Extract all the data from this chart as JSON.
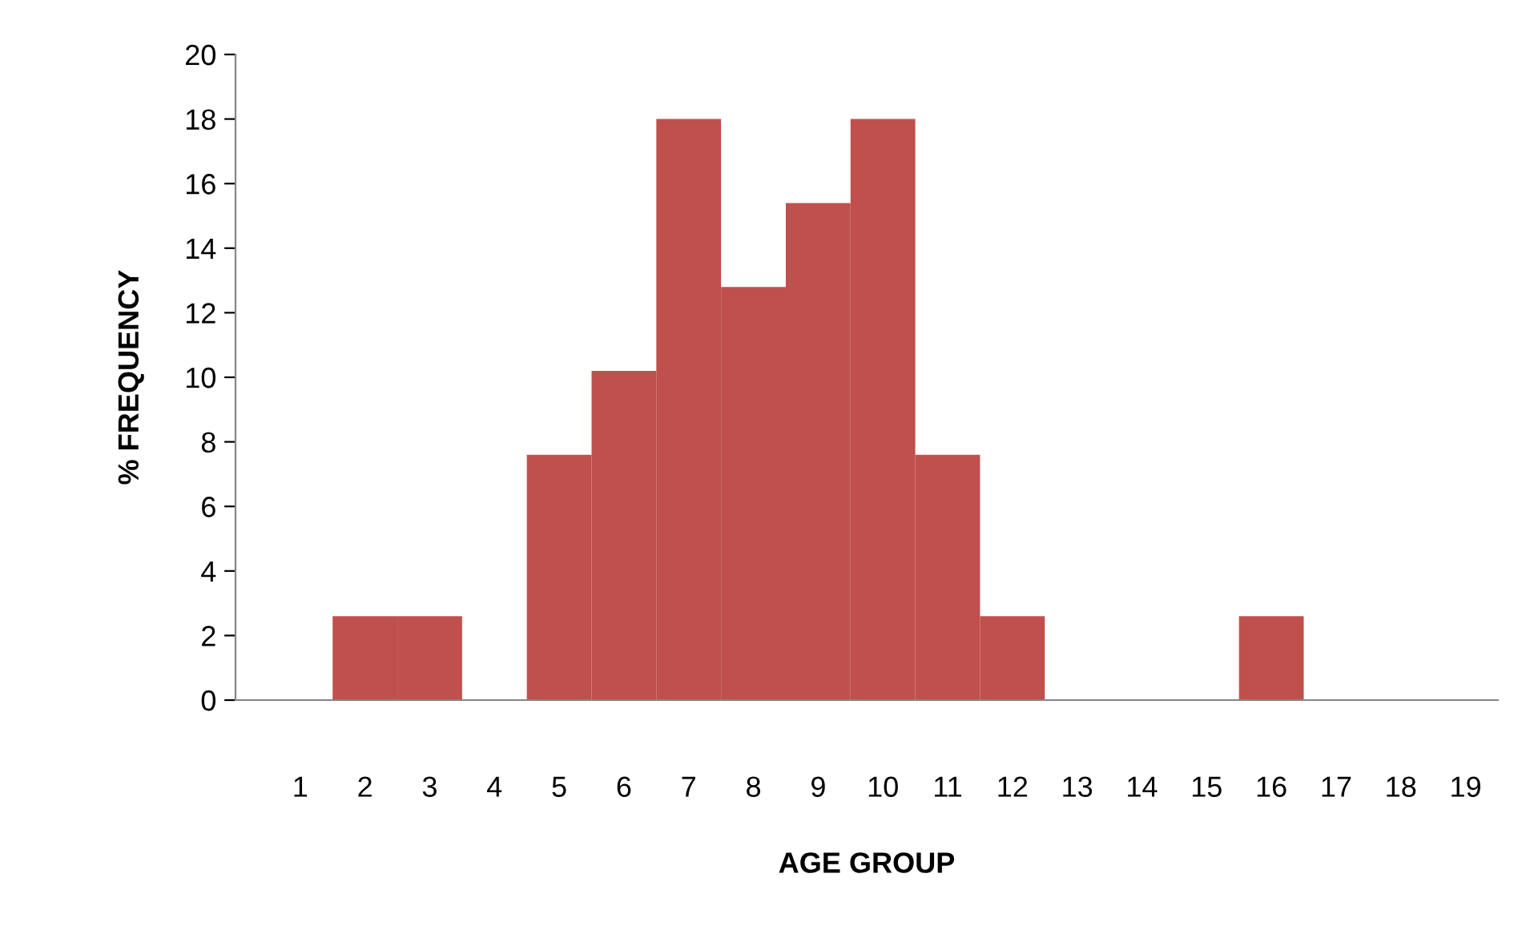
{
  "chart_data": {
    "type": "bar",
    "xlabel": "AGE GROUP",
    "ylabel": "% FREQUENCY",
    "categories": [
      "1",
      "2",
      "3",
      "4",
      "5",
      "6",
      "7",
      "8",
      "9",
      "10",
      "11",
      "12",
      "13",
      "14",
      "15",
      "16",
      "17",
      "18",
      "19"
    ],
    "values": [
      0,
      2.6,
      2.6,
      0,
      7.6,
      10.2,
      18,
      12.8,
      15.4,
      18,
      7.6,
      2.6,
      0,
      0,
      0,
      2.6,
      0,
      0,
      0
    ],
    "color": "#c0504d",
    "ylim": [
      0,
      20
    ],
    "yticks": [
      0,
      2,
      4,
      6,
      8,
      10,
      12,
      14,
      16,
      18,
      20
    ],
    "grid": false,
    "legend": false
  }
}
